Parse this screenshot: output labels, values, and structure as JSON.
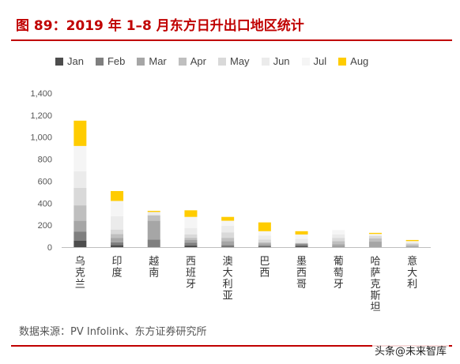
{
  "page": {
    "title": "图 89：2019 年 1–8 月东方日升出口地区统计",
    "source": "数据来源：PV Infolink、东方证券研究所",
    "watermark": "头条@未来智库"
  },
  "colors": {
    "Jan": "#4d4d4d",
    "Feb": "#7f7f7f",
    "Mar": "#a6a6a6",
    "Apr": "#bfbfbf",
    "May": "#d9d9d9",
    "Jun": "#ebebeb",
    "Jul": "#f5f5f5",
    "Aug": "#ffcc00",
    "title": "#c00000"
  },
  "chart_data": {
    "type": "bar",
    "stacked": true,
    "categories": [
      "乌克兰",
      "印度",
      "越南",
      "西班牙",
      "澳大利亚",
      "巴西",
      "墨西哥",
      "葡萄牙",
      "哈萨克斯坦",
      "意大利"
    ],
    "series": [
      {
        "name": "Jan",
        "values": [
          60,
          20,
          0,
          15,
          5,
          5,
          10,
          0,
          0,
          0
        ]
      },
      {
        "name": "Feb",
        "values": [
          80,
          25,
          70,
          25,
          15,
          10,
          15,
          5,
          0,
          0
        ]
      },
      {
        "name": "Mar",
        "values": [
          100,
          40,
          170,
          25,
          35,
          20,
          10,
          20,
          50,
          10
        ]
      },
      {
        "name": "Apr",
        "values": [
          140,
          35,
          50,
          20,
          30,
          10,
          0,
          30,
          30,
          15
        ]
      },
      {
        "name": "May",
        "values": [
          160,
          40,
          0,
          30,
          50,
          25,
          5,
          30,
          20,
          10
        ]
      },
      {
        "name": "Jun",
        "values": [
          150,
          120,
          30,
          60,
          60,
          35,
          35,
          30,
          10,
          10
        ]
      },
      {
        "name": "Jul",
        "values": [
          230,
          140,
          0,
          100,
          45,
          40,
          40,
          40,
          10,
          10
        ]
      },
      {
        "name": "Aug",
        "values": [
          230,
          90,
          10,
          60,
          35,
          80,
          30,
          0,
          10,
          10
        ]
      }
    ],
    "ylim": [
      0,
      1400
    ],
    "yticks": [
      "0",
      "200",
      "400",
      "600",
      "800",
      "1,000",
      "1,200",
      "1,400"
    ],
    "grid": false,
    "legend_position": "top"
  }
}
